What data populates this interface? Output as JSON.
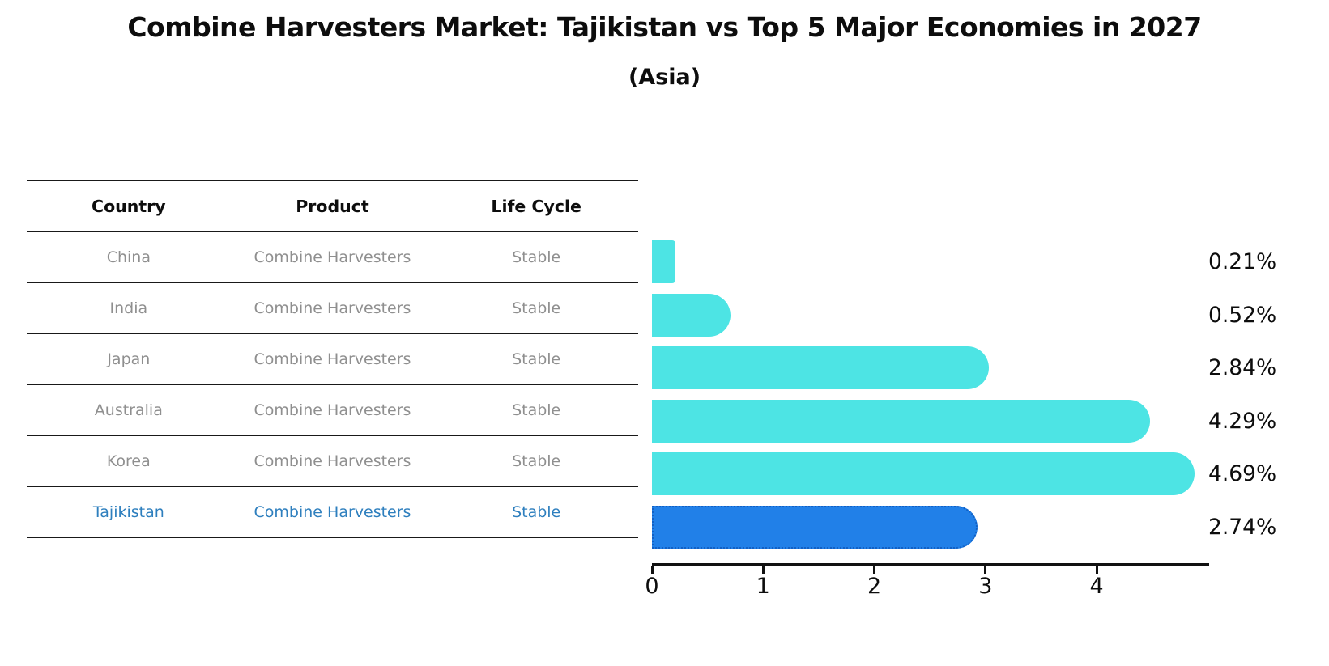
{
  "title": "Combine Harvesters Market: Tajikistan vs Top 5 Major Economies in 2027",
  "subtitle": "(Asia)",
  "table": {
    "headers": [
      "Country",
      "Product",
      "Life Cycle"
    ],
    "rows": [
      {
        "country": "China",
        "product": "Combine Harvesters",
        "life_cycle": "Stable",
        "highlight": false
      },
      {
        "country": "India",
        "product": "Combine Harvesters",
        "life_cycle": "Stable",
        "highlight": false
      },
      {
        "country": "Japan",
        "product": "Combine Harvesters",
        "life_cycle": "Stable",
        "highlight": false
      },
      {
        "country": "Australia",
        "product": "Combine Harvesters",
        "life_cycle": "Stable",
        "highlight": false
      },
      {
        "country": "Korea",
        "product": "Combine Harvesters",
        "life_cycle": "Stable",
        "highlight": false
      },
      {
        "country": "Tajikistan",
        "product": "Combine Harvesters",
        "life_cycle": "Stable",
        "highlight": true
      }
    ]
  },
  "chart_data": {
    "type": "bar",
    "orientation": "horizontal",
    "title": "Combine Harvesters Market: Tajikistan vs Top 5 Major Economies in 2027 (Asia)",
    "categories": [
      "China",
      "India",
      "Japan",
      "Australia",
      "Korea",
      "Tajikistan"
    ],
    "values": [
      0.21,
      0.52,
      2.84,
      4.29,
      4.69,
      2.74
    ],
    "value_labels": [
      "0.21%",
      "0.52%",
      "2.84%",
      "4.29%",
      "4.69%",
      "2.74%"
    ],
    "xticks": [
      "0",
      "1",
      "2",
      "3",
      "4"
    ],
    "xtick_values": [
      0,
      1,
      2,
      3,
      4
    ],
    "xlim": [
      0,
      4.99
    ],
    "grid": false,
    "legend": "none",
    "bar_color": "#4de4e4",
    "highlight_color": "#2180e8",
    "highlight_border_color": "#1260c4",
    "highlight_index": 5
  },
  "colors": {
    "text": "#0d0d0d",
    "muted_text": "#8f8f8f",
    "highlight_text": "#2e7fbe",
    "axis": "#111111"
  }
}
